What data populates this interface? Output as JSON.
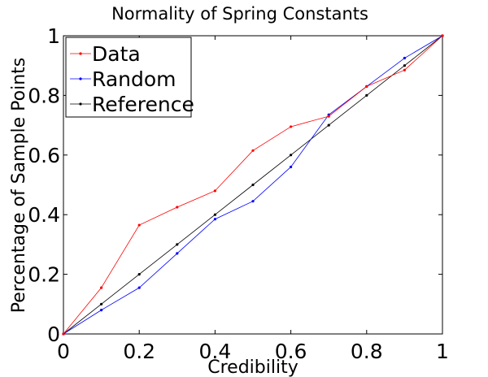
{
  "chart_data": {
    "type": "line",
    "title": "Normality of Spring Constants",
    "xlabel": "Credibility",
    "ylabel": "Percentage of Sample Points",
    "xlim": [
      0,
      1
    ],
    "ylim": [
      0,
      1
    ],
    "xticks": [
      0,
      0.2,
      0.4,
      0.6,
      0.8,
      1
    ],
    "yticks": [
      0,
      0.2,
      0.4,
      0.6,
      0.8,
      1
    ],
    "x_tick_labels": [
      "0",
      "0.2",
      "0.4",
      "0.6",
      "0.8",
      "1"
    ],
    "y_tick_labels": [
      "0",
      "0.2",
      "0.4",
      "0.6",
      "0.8",
      "1"
    ],
    "grid": false,
    "legend_position": "top-left",
    "x": [
      0,
      0.1,
      0.2,
      0.3,
      0.4,
      0.5,
      0.6,
      0.7,
      0.8,
      0.9,
      1.0
    ],
    "series": [
      {
        "name": "Data",
        "color": "#ff0000",
        "values": [
          0,
          0.155,
          0.365,
          0.425,
          0.48,
          0.615,
          0.695,
          0.73,
          0.83,
          0.885,
          1.0
        ]
      },
      {
        "name": "Random",
        "color": "#0000ff",
        "values": [
          0,
          0.08,
          0.155,
          0.27,
          0.385,
          0.445,
          0.56,
          0.735,
          0.83,
          0.925,
          1.0
        ]
      },
      {
        "name": "Reference",
        "color": "#000000",
        "values": [
          0,
          0.1,
          0.2,
          0.3,
          0.4,
          0.5,
          0.6,
          0.7,
          0.8,
          0.9,
          1.0
        ]
      }
    ]
  }
}
